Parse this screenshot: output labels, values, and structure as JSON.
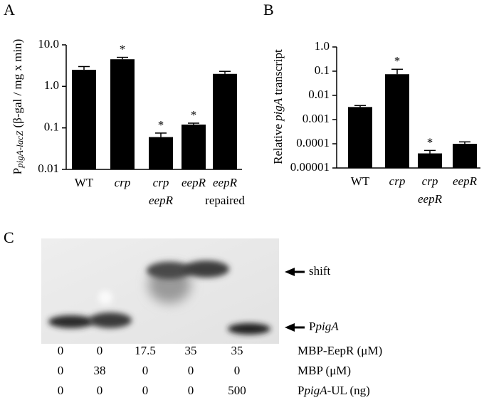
{
  "chart_data": [
    {
      "type": "bar",
      "panel": "A",
      "ylabel": [
        "P",
        "pigA-lacZ",
        " (β-gal / mg x min)"
      ],
      "categories": [
        [
          "WT"
        ],
        [
          "crp"
        ],
        [
          "crp",
          "eepR"
        ],
        [
          "eepR"
        ],
        [
          "eepR",
          "repaired"
        ]
      ],
      "values": [
        2.5,
        4.5,
        0.06,
        0.12,
        2.0
      ],
      "errors": [
        0.5,
        0.5,
        0.015,
        0.01,
        0.3
      ],
      "annotations": [
        null,
        "*",
        "*",
        "*",
        null
      ],
      "color": "#000000",
      "log_y": true,
      "ylim": [
        0.01,
        10
      ],
      "yticks": [
        0.01,
        0.1,
        {
          "value": 1,
          "label": "1.0"
        },
        {
          "value": 10,
          "label": "10.0"
        }
      ]
    },
    {
      "type": "bar",
      "panel": "B",
      "ylabel": [
        "Relative ",
        "pigA",
        " transcript"
      ],
      "categories": [
        [
          "WT"
        ],
        [
          "crp"
        ],
        [
          "crp",
          "eepR"
        ],
        [
          "eepR"
        ]
      ],
      "values": [
        0.0033,
        0.075,
        4e-05,
        0.0001
      ],
      "errors": [
        0.0005,
        0.045,
        1.3e-05,
        2e-05
      ],
      "annotations": [
        null,
        "*",
        "*",
        null
      ],
      "color": "#000000",
      "log_y": true,
      "ylim": [
        1e-05,
        1
      ],
      "yticks": [
        1e-05,
        0.0001,
        0.001,
        0.01,
        0.1,
        {
          "value": 1,
          "label": "1.0"
        }
      ]
    }
  ],
  "gel": {
    "panel": "C",
    "arrows": [
      [
        "shift"
      ],
      [
        "P",
        "pigA"
      ]
    ],
    "rows": [
      {
        "label": [
          "MBP-EepR (μM)"
        ],
        "values": [
          "0",
          "0",
          "17.5",
          "35",
          "35"
        ]
      },
      {
        "label": [
          "MBP (μM)"
        ],
        "values": [
          "0",
          "38",
          "0",
          "0",
          "0"
        ]
      },
      {
        "label": [
          "P",
          "pigA",
          "-UL (ng)"
        ],
        "values": [
          "0",
          "0",
          "0",
          "0",
          "500"
        ]
      }
    ]
  }
}
